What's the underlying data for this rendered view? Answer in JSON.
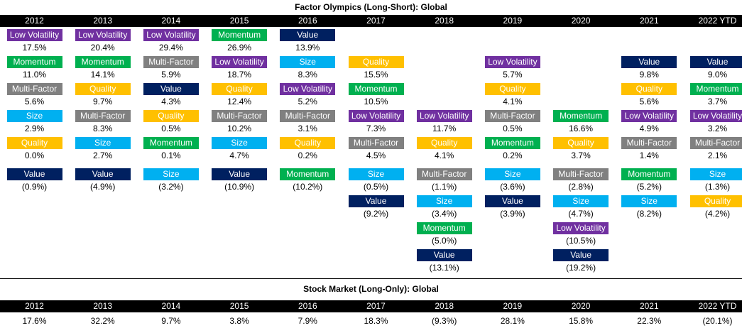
{
  "title": "Factor Olympics (Long-Short): Global",
  "market_title": "Stock Market (Long-Only): Global",
  "colors": {
    "Low Volatility": "#7030a0",
    "Momentum": "#00b050",
    "Multi-Factor": "#808080",
    "Size": "#00b0f0",
    "Quality": "#ffc000",
    "Value": "#002060"
  },
  "chart_data": [
    {
      "type": "table",
      "title": "Factor Olympics (Long-Short): Global",
      "categories": [
        "2012",
        "2013",
        "2014",
        "2015",
        "2016",
        "2017",
        "2018",
        "2019",
        "2020",
        "2021",
        "2022 YTD"
      ],
      "columns": [
        {
          "year": "2012",
          "positive": [
            {
              "factor": "Low Volatility",
              "value": "17.5%"
            },
            {
              "factor": "Momentum",
              "value": "11.0%"
            },
            {
              "factor": "Multi-Factor",
              "value": "5.6%"
            },
            {
              "factor": "Size",
              "value": "2.9%"
            },
            {
              "factor": "Quality",
              "value": "0.0%"
            }
          ],
          "negative": [
            {
              "factor": "Value",
              "value": "(0.9%)"
            }
          ]
        },
        {
          "year": "2013",
          "positive": [
            {
              "factor": "Low Volatility",
              "value": "20.4%"
            },
            {
              "factor": "Momentum",
              "value": "14.1%"
            },
            {
              "factor": "Quality",
              "value": "9.7%"
            },
            {
              "factor": "Multi-Factor",
              "value": "8.3%"
            },
            {
              "factor": "Size",
              "value": "2.7%"
            }
          ],
          "negative": [
            {
              "factor": "Value",
              "value": "(4.9%)"
            }
          ]
        },
        {
          "year": "2014",
          "positive": [
            {
              "factor": "Low Volatility",
              "value": "29.4%"
            },
            {
              "factor": "Multi-Factor",
              "value": "5.9%"
            },
            {
              "factor": "Value",
              "value": "4.3%"
            },
            {
              "factor": "Quality",
              "value": "0.5%"
            },
            {
              "factor": "Momentum",
              "value": "0.1%"
            }
          ],
          "negative": [
            {
              "factor": "Size",
              "value": "(3.2%)"
            }
          ]
        },
        {
          "year": "2015",
          "positive": [
            {
              "factor": "Momentum",
              "value": "26.9%"
            },
            {
              "factor": "Low Volatility",
              "value": "18.7%"
            },
            {
              "factor": "Quality",
              "value": "12.4%"
            },
            {
              "factor": "Multi-Factor",
              "value": "10.2%"
            },
            {
              "factor": "Size",
              "value": "4.7%"
            }
          ],
          "negative": [
            {
              "factor": "Value",
              "value": "(10.9%)"
            }
          ]
        },
        {
          "year": "2016",
          "positive": [
            {
              "factor": "Value",
              "value": "13.9%"
            },
            {
              "factor": "Size",
              "value": "8.3%"
            },
            {
              "factor": "Low Volatility",
              "value": "5.2%"
            },
            {
              "factor": "Multi-Factor",
              "value": "3.1%"
            },
            {
              "factor": "Quality",
              "value": "0.2%"
            }
          ],
          "negative": [
            {
              "factor": "Momentum",
              "value": "(10.2%)"
            }
          ]
        },
        {
          "year": "2017",
          "positive": [
            {
              "factor": "Quality",
              "value": "15.5%"
            },
            {
              "factor": "Momentum",
              "value": "10.5%"
            },
            {
              "factor": "Low Volatility",
              "value": "7.3%"
            },
            {
              "factor": "Multi-Factor",
              "value": "4.5%"
            }
          ],
          "negative": [
            {
              "factor": "Size",
              "value": "(0.5%)"
            },
            {
              "factor": "Value",
              "value": "(9.2%)"
            }
          ]
        },
        {
          "year": "2018",
          "positive": [
            {
              "factor": "Low Volatility",
              "value": "11.7%"
            },
            {
              "factor": "Quality",
              "value": "4.1%"
            }
          ],
          "negative": [
            {
              "factor": "Multi-Factor",
              "value": "(1.1%)"
            },
            {
              "factor": "Size",
              "value": "(3.4%)"
            },
            {
              "factor": "Momentum",
              "value": "(5.0%)"
            },
            {
              "factor": "Value",
              "value": "(13.1%)"
            }
          ]
        },
        {
          "year": "2019",
          "positive": [
            {
              "factor": "Low Volatility",
              "value": "5.7%"
            },
            {
              "factor": "Quality",
              "value": "4.1%"
            },
            {
              "factor": "Multi-Factor",
              "value": "0.5%"
            },
            {
              "factor": "Momentum",
              "value": "0.2%"
            }
          ],
          "negative": [
            {
              "factor": "Size",
              "value": "(3.6%)"
            },
            {
              "factor": "Value",
              "value": "(3.9%)"
            }
          ]
        },
        {
          "year": "2020",
          "positive": [
            {
              "factor": "Momentum",
              "value": "16.6%"
            },
            {
              "factor": "Quality",
              "value": "3.7%"
            }
          ],
          "negative": [
            {
              "factor": "Multi-Factor",
              "value": "(2.8%)"
            },
            {
              "factor": "Size",
              "value": "(4.7%)"
            },
            {
              "factor": "Low Volatility",
              "value": "(10.5%)"
            },
            {
              "factor": "Value",
              "value": "(19.2%)"
            }
          ]
        },
        {
          "year": "2021",
          "positive": [
            {
              "factor": "Value",
              "value": "9.8%"
            },
            {
              "factor": "Quality",
              "value": "5.6%"
            },
            {
              "factor": "Low Volatility",
              "value": "4.9%"
            },
            {
              "factor": "Multi-Factor",
              "value": "1.4%"
            }
          ],
          "negative": [
            {
              "factor": "Momentum",
              "value": "(5.2%)"
            },
            {
              "factor": "Size",
              "value": "(8.2%)"
            }
          ]
        },
        {
          "year": "2022 YTD",
          "positive": [
            {
              "factor": "Value",
              "value": "9.0%"
            },
            {
              "factor": "Momentum",
              "value": "3.7%"
            },
            {
              "factor": "Low Volatility",
              "value": "3.2%"
            },
            {
              "factor": "Multi-Factor",
              "value": "2.1%"
            }
          ],
          "negative": [
            {
              "factor": "Size",
              "value": "(1.3%)"
            },
            {
              "factor": "Quality",
              "value": "(4.2%)"
            }
          ]
        }
      ]
    },
    {
      "type": "table",
      "title": "Stock Market (Long-Only): Global",
      "categories": [
        "2012",
        "2013",
        "2014",
        "2015",
        "2016",
        "2017",
        "2018",
        "2019",
        "2020",
        "2021",
        "2022 YTD"
      ],
      "values": [
        "17.6%",
        "32.2%",
        "9.7%",
        "3.8%",
        "7.9%",
        "18.3%",
        "(9.3%)",
        "28.1%",
        "15.8%",
        "22.3%",
        "(20.1%)"
      ]
    }
  ]
}
